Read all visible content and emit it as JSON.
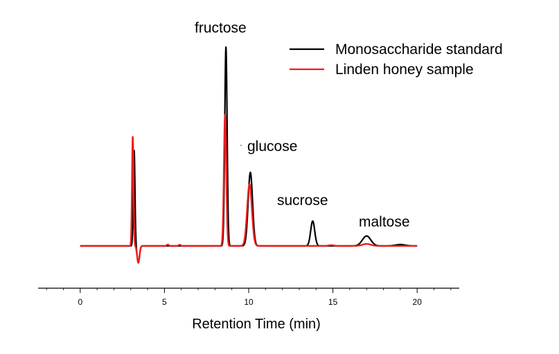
{
  "chart_data": {
    "type": "line",
    "title": "",
    "xlabel": "Retention Time (min)",
    "ylabel": "",
    "xlim": [
      -2.5,
      22.5
    ],
    "ylim": [
      -0.13,
      1.0
    ],
    "x_ticks": [
      {
        "value": 0,
        "label": "0"
      },
      {
        "value": 5,
        "label": "5"
      },
      {
        "value": 10,
        "label": "10"
      },
      {
        "value": 15,
        "label": "15"
      },
      {
        "value": 20,
        "label": "20"
      }
    ],
    "grid": false,
    "legend": "top-right",
    "series": [
      {
        "name": "Monosaccharide standard",
        "color": "#000000",
        "peaks": [
          {
            "center": 3.2,
            "height": 0.48,
            "width": 0.05
          },
          {
            "center": 3.45,
            "height": -0.085,
            "width": 0.07
          },
          {
            "center": 8.65,
            "height": 1.0,
            "width": 0.07
          },
          {
            "center": 10.1,
            "height": 0.37,
            "width": 0.13
          },
          {
            "center": 13.8,
            "height": 0.125,
            "width": 0.12
          },
          {
            "center": 17.0,
            "height": 0.05,
            "width": 0.25
          },
          {
            "center": 19.0,
            "height": 0.007,
            "width": 0.3
          }
        ]
      },
      {
        "name": "Linden honey sample",
        "color": "#ee1c1c",
        "peaks": [
          {
            "center": 3.12,
            "height": 0.55,
            "width": 0.045
          },
          {
            "center": 3.45,
            "height": -0.085,
            "width": 0.07
          },
          {
            "center": 5.2,
            "height": 0.007,
            "width": 0.06
          },
          {
            "center": 5.9,
            "height": 0.006,
            "width": 0.06
          },
          {
            "center": 8.6,
            "height": 0.66,
            "width": 0.07
          },
          {
            "center": 10.05,
            "height": 0.31,
            "width": 0.14
          },
          {
            "center": 14.9,
            "height": 0.004,
            "width": 0.15
          },
          {
            "center": 17.0,
            "height": 0.01,
            "width": 0.25
          }
        ]
      }
    ],
    "annotations": [
      {
        "text": "fructose",
        "x": 8.6,
        "y": 1.1
      },
      {
        "text": "glucose",
        "x": 11.5,
        "y": 0.53
      },
      {
        "text": "sucrose",
        "x": 13.9,
        "y": 0.22
      },
      {
        "text": "maltose",
        "x": 17.6,
        "y": 0.1
      }
    ]
  }
}
